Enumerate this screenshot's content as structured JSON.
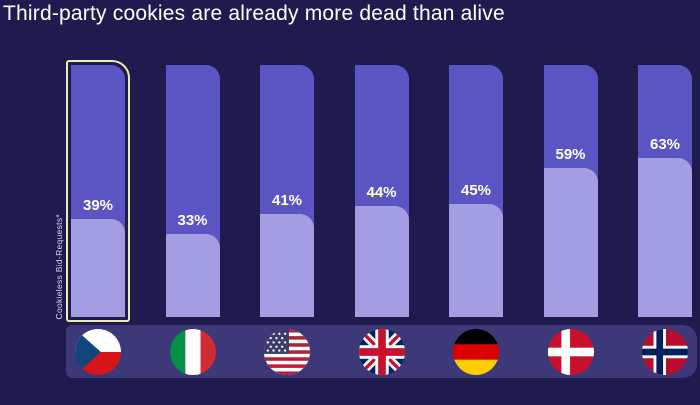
{
  "title": "Third-party cookies are already more dead than alive",
  "chart_data": {
    "type": "bar",
    "subtype": "percentage-fill-columns",
    "title": "Third-party cookies are already more dead than alive",
    "ylabel": "Cookieless Bid-Requests*",
    "unit": "%",
    "categories": [
      "Czech Republic",
      "Italy",
      "United States",
      "United Kingdom",
      "Germany",
      "Denmark",
      "Norway"
    ],
    "values": [
      39,
      33,
      41,
      44,
      45,
      59,
      63
    ],
    "value_labels": [
      "39%",
      "33%",
      "41%",
      "44%",
      "45%",
      "59%",
      "63%"
    ],
    "flags": [
      "cz",
      "it",
      "us",
      "gb",
      "de",
      "dk",
      "no"
    ],
    "highlight_index": 0,
    "ylim": [
      0,
      100
    ],
    "grid": false,
    "legend": false,
    "colors": {
      "background": "#201b4e",
      "bar_remaining": "#5b55c3",
      "bar_cookieless": "#a39ee1",
      "flag_band": "#3d3878",
      "highlight_outline": "#e9edae",
      "label_text": "#ffffff",
      "title_text": "#ffffff"
    }
  }
}
